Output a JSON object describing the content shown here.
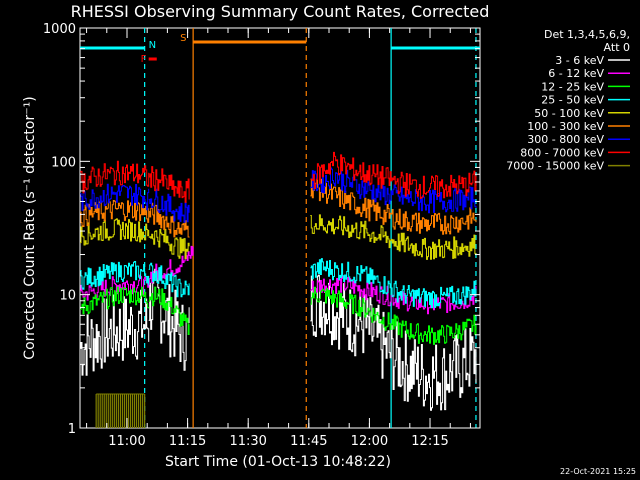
{
  "chart_data": {
    "type": "line",
    "title": "RHESSI Observing Summary Count Rates, Corrected",
    "xlabel": "Start Time (01-Oct-13 10:48:22)",
    "ylabel": "Corrected Count Rate (s⁻¹ detector⁻¹)",
    "yscale": "log",
    "ylim": [
      1,
      1000
    ],
    "xlim_minutes": [
      0,
      99
    ],
    "x_tick_labels": [
      "11:00",
      "11:15",
      "11:30",
      "11:45",
      "12:00",
      "12:15"
    ],
    "x_tick_minutes": [
      11.63,
      26.63,
      41.63,
      56.63,
      71.63,
      86.63
    ],
    "y_tick_labels": [
      "1",
      "10",
      "100",
      "1000"
    ],
    "y_tick_values": [
      1,
      10,
      100,
      1000
    ],
    "grid": false,
    "legend_position": "right",
    "legend_header": [
      "Det 1,3,4,5,6,9,",
      "Att 0"
    ],
    "series": [
      {
        "name": "3 - 6 keV",
        "color": "#ffffff",
        "segments": [
          {
            "x": [
              0,
              5,
              10,
              15,
              17
            ],
            "y": [
              4,
              5,
              5.5,
              6,
              6
            ]
          },
          {
            "x": [
              17,
              20,
              23,
              25,
              27
            ],
            "y": [
              9,
              8,
              6,
              5,
              5
            ]
          },
          {
            "x": [
              57,
              60,
              65,
              70,
              75,
              80,
              85,
              90,
              95,
              98
            ],
            "y": [
              9,
              9,
              7,
              6,
              4,
              3,
              2.5,
              2.5,
              3,
              3.5
            ]
          }
        ]
      },
      {
        "name": "6 - 12 keV",
        "color": "#ff00ff",
        "segments": [
          {
            "x": [
              0,
              5,
              10,
              15,
              17
            ],
            "y": [
              10,
              11,
              12,
              12,
              11
            ]
          },
          {
            "x": [
              17,
              20,
              23,
              26,
              28
            ],
            "y": [
              14,
              15,
              16,
              18,
              22
            ]
          },
          {
            "x": [
              57,
              60,
              65,
              70,
              75,
              80,
              85,
              90,
              95,
              98
            ],
            "y": [
              11,
              12,
              12,
              11,
              10,
              9,
              8.5,
              8.5,
              9,
              10
            ]
          }
        ]
      },
      {
        "name": "12 - 25 keV",
        "color": "#00ff00",
        "segments": [
          {
            "x": [
              0,
              5,
              10,
              15,
              17
            ],
            "y": [
              8,
              9,
              10,
              10,
              9
            ]
          },
          {
            "x": [
              17,
              20,
              23,
              25,
              27
            ],
            "y": [
              10,
              9.5,
              8,
              6.5,
              5.5
            ]
          },
          {
            "x": [
              57,
              60,
              65,
              70,
              75,
              80,
              85,
              90,
              95,
              98
            ],
            "y": [
              10,
              10,
              9,
              8,
              6.5,
              5.5,
              5,
              5,
              5.5,
              6
            ]
          }
        ]
      },
      {
        "name": "25 - 50 keV",
        "color": "#00ffff",
        "segments": [
          {
            "x": [
              0,
              5,
              10,
              15,
              17
            ],
            "y": [
              13,
              14,
              15,
              15,
              14
            ]
          },
          {
            "x": [
              17,
              20,
              23,
              25,
              27
            ],
            "y": [
              15,
              14,
              12,
              11,
              11
            ]
          },
          {
            "x": [
              57,
              60,
              65,
              70,
              75,
              80,
              85,
              90,
              95,
              98
            ],
            "y": [
              15,
              16,
              15,
              14,
              12,
              10,
              9.5,
              9.5,
              10,
              11
            ]
          }
        ]
      },
      {
        "name": "50 - 100 keV",
        "color": "#d4d400",
        "segments": [
          {
            "x": [
              0,
              5,
              10,
              15,
              17
            ],
            "y": [
              28,
              30,
              31,
              30,
              28
            ]
          },
          {
            "x": [
              17,
              20,
              23,
              25,
              27
            ],
            "y": [
              29,
              27,
              24,
              22,
              23
            ]
          },
          {
            "x": [
              57,
              60,
              65,
              70,
              75,
              80,
              85,
              90,
              95,
              98
            ],
            "y": [
              34,
              34,
              32,
              30,
              27,
              24,
              22,
              22,
              23,
              24
            ]
          }
        ]
      },
      {
        "name": "100 - 300 keV",
        "color": "#ff8000",
        "segments": [
          {
            "x": [
              0,
              5,
              10,
              15,
              17
            ],
            "y": [
              38,
              42,
              44,
              43,
              40
            ]
          },
          {
            "x": [
              17,
              20,
              23,
              25,
              27
            ],
            "y": [
              41,
              38,
              33,
              30,
              32
            ]
          },
          {
            "x": [
              57,
              60,
              65,
              70,
              75,
              80,
              85,
              90,
              95,
              98
            ],
            "y": [
              65,
              60,
              52,
              45,
              40,
              36,
              34,
              34,
              36,
              38
            ]
          }
        ]
      },
      {
        "name": "300 - 800 keV",
        "color": "#0000ff",
        "segments": [
          {
            "x": [
              0,
              5,
              10,
              15,
              17
            ],
            "y": [
              50,
              55,
              58,
              56,
              52
            ]
          },
          {
            "x": [
              17,
              20,
              23,
              25,
              27
            ],
            "y": [
              54,
              50,
              44,
              41,
              43
            ]
          },
          {
            "x": [
              57,
              60,
              63,
              65,
              70,
              75,
              80,
              85,
              90,
              95,
              98
            ],
            "y": [
              70,
              70,
              80,
              72,
              63,
              57,
              53,
              50,
              50,
              52,
              54
            ]
          }
        ]
      },
      {
        "name": "800 - 7000 keV",
        "color": "#ff0000",
        "segments": [
          {
            "x": [
              0,
              5,
              10,
              15,
              17
            ],
            "y": [
              70,
              78,
              82,
              80,
              73
            ]
          },
          {
            "x": [
              17,
              20,
              23,
              25,
              27
            ],
            "y": [
              76,
              72,
              63,
              58,
              60
            ]
          },
          {
            "x": [
              57,
              60,
              63,
              65,
              70,
              75,
              80,
              85,
              90,
              95,
              98
            ],
            "y": [
              72,
              85,
              100,
              92,
              82,
              75,
              68,
              64,
              64,
              66,
              70
            ]
          }
        ]
      },
      {
        "name": "7000 - 15000 keV",
        "color": "#808000",
        "segments": [
          {
            "x": [
              4,
              8,
              12,
              16
            ],
            "y": [
              1.8,
              1.8,
              1.8,
              1.8
            ]
          }
        ]
      }
    ],
    "flag_bars": [
      {
        "label": "",
        "color": "#00ffff",
        "x": [
          0,
          16
        ]
      },
      {
        "label": "",
        "color": "#00ffff",
        "x": [
          77,
          99
        ]
      },
      {
        "label": "N",
        "color": "#00ffff",
        "x": [
          16,
          16
        ]
      },
      {
        "label": "F",
        "color": "#ff0000",
        "x": [
          17,
          19
        ]
      },
      {
        "label": "S",
        "color": "#ff8000",
        "x": [
          28,
          56
        ]
      }
    ],
    "vertical_lines": [
      {
        "x": 16,
        "color": "#00ffff",
        "style": "dashed"
      },
      {
        "x": 28,
        "color": "#ff8000",
        "style": "solid"
      },
      {
        "x": 56,
        "color": "#ff8000",
        "style": "dashed"
      },
      {
        "x": 77,
        "color": "#00ffff",
        "style": "solid"
      },
      {
        "x": 98,
        "color": "#00ffff",
        "style": "dashed"
      }
    ]
  },
  "footer": {
    "timestamp": "22-Oct-2021 15:25"
  }
}
